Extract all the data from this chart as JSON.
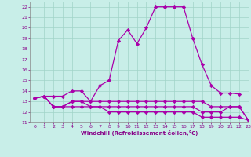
{
  "xlabel": "Windchill (Refroidissement éolien,°C)",
  "background_color": "#c8eee8",
  "grid_color": "#a0d4c8",
  "line_color": "#aa00aa",
  "xlim": [
    -0.5,
    23
  ],
  "ylim": [
    11,
    22.5
  ],
  "yticks": [
    11,
    12,
    13,
    14,
    15,
    16,
    17,
    18,
    19,
    20,
    21,
    22
  ],
  "xticks": [
    0,
    1,
    2,
    3,
    4,
    5,
    6,
    7,
    8,
    9,
    10,
    11,
    12,
    13,
    14,
    15,
    16,
    17,
    18,
    19,
    20,
    21,
    22,
    23
  ],
  "hours": [
    0,
    1,
    2,
    3,
    4,
    5,
    6,
    7,
    8,
    9,
    10,
    11,
    12,
    13,
    14,
    15,
    16,
    17,
    18,
    19,
    20,
    21,
    22,
    23
  ],
  "series1": [
    13.3,
    13.5,
    13.5,
    13.5,
    14.0,
    14.0,
    13.0,
    14.5,
    15.0,
    18.8,
    19.8,
    18.5,
    20.0,
    22.0,
    22.0,
    22.0,
    22.0,
    19.0,
    16.5,
    14.5,
    13.8,
    13.8,
    13.7,
    null
  ],
  "series2": [
    13.3,
    13.5,
    12.5,
    12.5,
    13.0,
    13.0,
    13.0,
    13.0,
    13.0,
    13.0,
    13.0,
    13.0,
    13.0,
    13.0,
    13.0,
    13.0,
    13.0,
    13.0,
    13.0,
    12.5,
    12.5,
    12.5,
    12.5,
    11.2
  ],
  "series3": [
    13.3,
    13.5,
    12.5,
    12.5,
    13.0,
    13.0,
    12.5,
    12.5,
    12.5,
    12.5,
    12.5,
    12.5,
    12.5,
    12.5,
    12.5,
    12.5,
    12.5,
    12.5,
    12.0,
    12.0,
    12.0,
    12.5,
    12.5,
    11.2
  ],
  "series4": [
    13.3,
    13.5,
    12.5,
    12.5,
    12.5,
    12.5,
    12.5,
    12.5,
    12.0,
    12.0,
    12.0,
    12.0,
    12.0,
    12.0,
    12.0,
    12.0,
    12.0,
    12.0,
    11.5,
    11.5,
    11.5,
    11.5,
    11.5,
    11.2
  ]
}
